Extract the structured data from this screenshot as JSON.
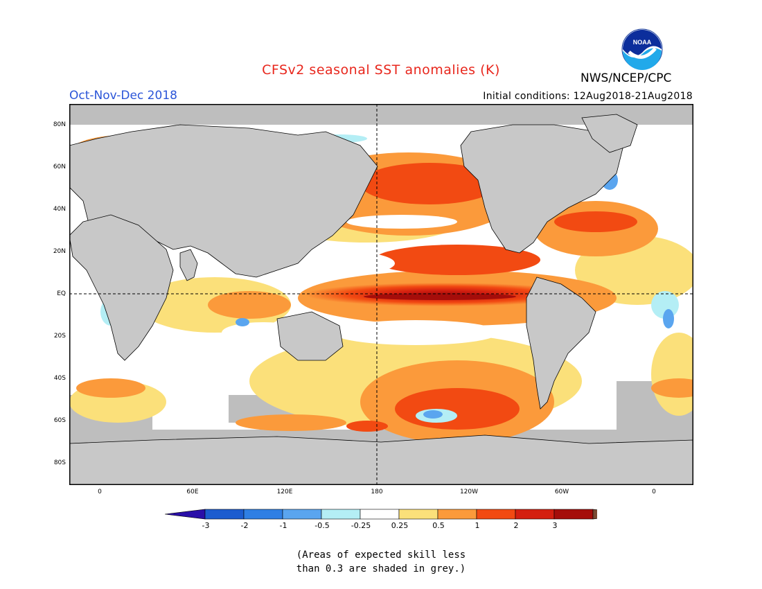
{
  "title": "CFSv2 seasonal SST anomalies (K)",
  "season": "Oct-Nov-Dec 2018",
  "initial_conditions": "Initial conditions: 12Aug2018-21Aug2018",
  "agency": "NWS/NCEP/CPC",
  "logo_text": "NOAA",
  "lat_labels": [
    "80N",
    "60N",
    "40N",
    "20N",
    "EQ",
    "20S",
    "40S",
    "60S",
    "80S"
  ],
  "lon_labels": [
    "0",
    "60E",
    "120E",
    "180",
    "120W",
    "60W",
    "0"
  ],
  "colorbar": {
    "labels": [
      "-3",
      "-2",
      "-1",
      "-0.5",
      "-0.25",
      "0.25",
      "0.5",
      "1",
      "2",
      "3"
    ],
    "colors": [
      "#2a0fa8",
      "#1c5ccf",
      "#2f7fe4",
      "#5aa5ef",
      "#b4eef5",
      "#ffffff",
      "#fbe07a",
      "#fb9a3b",
      "#f24a12",
      "#d41f10",
      "#a50d0a",
      "#7a4a33"
    ]
  },
  "note_lines": [
    "(Areas of expected skill less",
    "than 0.3 are shaded in grey.)"
  ],
  "colors": {
    "land": "#c8c8c8",
    "low_skill": "#bebebe"
  }
}
